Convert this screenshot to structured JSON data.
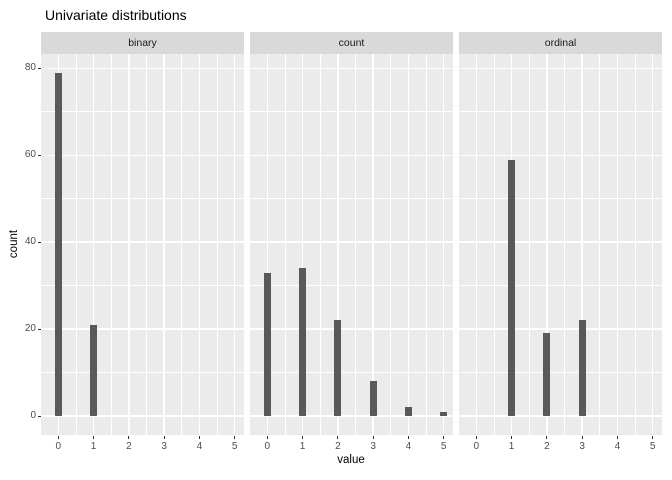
{
  "title": "Univariate distributions",
  "chart_data": {
    "type": "bar",
    "title": "Univariate distributions",
    "xlabel": "value",
    "ylabel": "count",
    "facet_layout": "3 columns",
    "legend": "none",
    "grid": true,
    "x_ticks": [
      0,
      1,
      2,
      3,
      4,
      5
    ],
    "y_ticks": [
      0,
      20,
      40,
      60,
      80
    ],
    "y_minor": [
      10,
      30,
      50,
      70
    ],
    "xlim": [
      -0.5,
      5.5
    ],
    "ylim": [
      0,
      83
    ],
    "facets": [
      {
        "label": "binary",
        "bars": [
          {
            "x": 0,
            "count": 79
          },
          {
            "x": 1,
            "count": 21
          }
        ]
      },
      {
        "label": "count",
        "bars": [
          {
            "x": 0,
            "count": 33
          },
          {
            "x": 1,
            "count": 34
          },
          {
            "x": 2,
            "count": 22
          },
          {
            "x": 3,
            "count": 8
          },
          {
            "x": 4,
            "count": 2
          },
          {
            "x": 5,
            "count": 1
          }
        ]
      },
      {
        "label": "ordinal",
        "bars": [
          {
            "x": 1,
            "count": 59
          },
          {
            "x": 2,
            "count": 19
          },
          {
            "x": 3,
            "count": 22
          }
        ]
      }
    ],
    "colors": {
      "bar": "#595959",
      "panel_bg": "#EBEBEB",
      "strip_bg": "#D9D9D9",
      "gridline": "#FFFFFF",
      "axis_text": "#4D4D4D",
      "tick_mark": "#333333",
      "title_text": "#000000",
      "strip_text": "#1A1A1A"
    }
  }
}
